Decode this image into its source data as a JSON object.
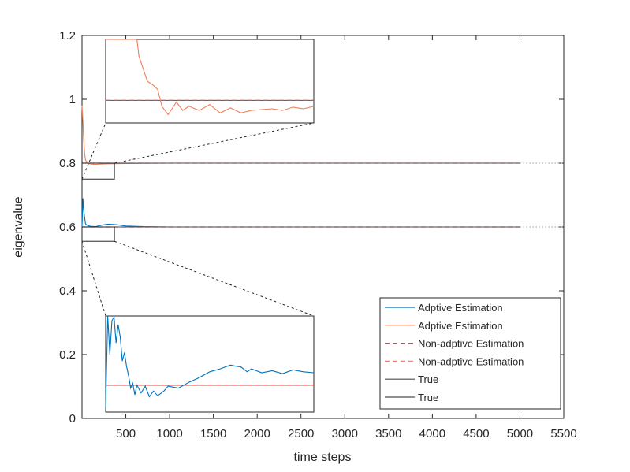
{
  "chart_data": {
    "type": "line",
    "xlabel": "time steps",
    "ylabel": "eigenvalue",
    "xlim": [
      0,
      5500
    ],
    "ylim": [
      0,
      1.2
    ],
    "x_ticks": [
      500,
      1000,
      1500,
      2000,
      2500,
      3000,
      3500,
      4000,
      4500,
      5000,
      5500
    ],
    "y_ticks": [
      0,
      0.2,
      0.4,
      0.6,
      0.8,
      1,
      1.2
    ],
    "legend_position": "lower-right",
    "grid": false,
    "series": [
      {
        "name": "Adptive Estimation",
        "color": "#0072BD",
        "style": "solid",
        "x": [
          0,
          10,
          20,
          30,
          40,
          60,
          80,
          100,
          150,
          200,
          250,
          300,
          400,
          500,
          700,
          1000,
          1500,
          2000,
          3000,
          4000,
          5000
        ],
        "y": [
          0.6,
          0.69,
          0.65,
          0.63,
          0.61,
          0.605,
          0.603,
          0.602,
          0.601,
          0.604,
          0.607,
          0.609,
          0.607,
          0.603,
          0.601,
          0.6,
          0.6,
          0.6,
          0.6,
          0.6,
          0.6
        ]
      },
      {
        "name": "Adptive Estimation",
        "color": "#EE7F5A",
        "style": "solid",
        "x": [
          0,
          10,
          20,
          30,
          40,
          60,
          80,
          100,
          150,
          200,
          300,
          500,
          1000,
          2000,
          3000,
          4000,
          5000
        ],
        "y": [
          0.98,
          0.93,
          0.87,
          0.83,
          0.81,
          0.8,
          0.799,
          0.797,
          0.796,
          0.797,
          0.798,
          0.799,
          0.8,
          0.8,
          0.8,
          0.8,
          0.8
        ]
      },
      {
        "name": "Non-adptive Estimation",
        "color": "#E8423F",
        "style": "dashed",
        "x": [
          0,
          5000
        ],
        "y": [
          0.6,
          0.6
        ]
      },
      {
        "name": "Non-adptive Estimation",
        "color": "#EE7F7F",
        "style": "dashed",
        "x": [
          0,
          5000
        ],
        "y": [
          0.8,
          0.8
        ]
      },
      {
        "name": "True",
        "color": "#4D4D4D",
        "style": "solid",
        "x": [
          0,
          5000
        ],
        "y": [
          0.6,
          0.6
        ]
      },
      {
        "name": "True",
        "color": "#4D4D4D",
        "style": "solid",
        "x": [
          0,
          5000
        ],
        "y": [
          0.8,
          0.8
        ]
      }
    ],
    "dotted_extensions": [
      {
        "x": [
          5000,
          5500
        ],
        "y": [
          0.6,
          0.6
        ]
      },
      {
        "x": [
          5000,
          5500
        ],
        "y": [
          0.8,
          0.8
        ]
      }
    ],
    "zoom_regions": [
      {
        "target": "upper",
        "xlim": [
          0,
          370
        ],
        "ylim": [
          0.75,
          0.8
        ]
      },
      {
        "target": "lower",
        "xlim": [
          0,
          370
        ],
        "ylim": [
          0.555,
          0.6
        ]
      }
    ],
    "insets": [
      {
        "name": "upper",
        "curve": [
          [
            0.0,
            1.2
          ],
          [
            0.13,
            1.2
          ],
          [
            0.14,
            1.17
          ],
          [
            0.15,
            1.2
          ],
          [
            0.16,
            0.8
          ],
          [
            0.2,
            0.5
          ],
          [
            0.23,
            0.45
          ],
          [
            0.25,
            0.4
          ],
          [
            0.27,
            0.2
          ],
          [
            0.3,
            0.1
          ],
          [
            0.34,
            0.25
          ],
          [
            0.37,
            0.15
          ],
          [
            0.4,
            0.2
          ],
          [
            0.45,
            0.15
          ],
          [
            0.5,
            0.22
          ],
          [
            0.55,
            0.12
          ],
          [
            0.6,
            0.18
          ],
          [
            0.65,
            0.12
          ],
          [
            0.7,
            0.15
          ],
          [
            0.75,
            0.16
          ],
          [
            0.8,
            0.17
          ],
          [
            0.85,
            0.15
          ],
          [
            0.9,
            0.19
          ],
          [
            0.95,
            0.17
          ],
          [
            1.0,
            0.2
          ]
        ],
        "curve_color": "#EE7F5A",
        "ref_level": 0.27
      },
      {
        "name": "lower",
        "curve": [
          [
            0.0,
            0.05
          ],
          [
            0.01,
            1.2
          ],
          [
            0.02,
            0.6
          ],
          [
            0.03,
            0.95
          ],
          [
            0.04,
            0.99
          ],
          [
            0.05,
            0.72
          ],
          [
            0.06,
            0.91
          ],
          [
            0.07,
            0.78
          ],
          [
            0.08,
            0.53
          ],
          [
            0.09,
            0.62
          ],
          [
            0.1,
            0.48
          ],
          [
            0.11,
            0.38
          ],
          [
            0.12,
            0.25
          ],
          [
            0.13,
            0.3
          ],
          [
            0.14,
            0.18
          ],
          [
            0.15,
            0.28
          ],
          [
            0.17,
            0.2
          ],
          [
            0.19,
            0.27
          ],
          [
            0.21,
            0.16
          ],
          [
            0.23,
            0.22
          ],
          [
            0.25,
            0.17
          ],
          [
            0.28,
            0.22
          ],
          [
            0.3,
            0.27
          ],
          [
            0.35,
            0.25
          ],
          [
            0.4,
            0.31
          ],
          [
            0.45,
            0.36
          ],
          [
            0.5,
            0.42
          ],
          [
            0.55,
            0.45
          ],
          [
            0.6,
            0.49
          ],
          [
            0.62,
            0.48
          ],
          [
            0.65,
            0.47
          ],
          [
            0.68,
            0.42
          ],
          [
            0.7,
            0.45
          ],
          [
            0.75,
            0.41
          ],
          [
            0.8,
            0.43
          ],
          [
            0.85,
            0.4
          ],
          [
            0.9,
            0.44
          ],
          [
            0.95,
            0.42
          ],
          [
            1.0,
            0.41
          ]
        ],
        "curve_color": "#0072BD",
        "ref_level": 0.28
      }
    ]
  }
}
